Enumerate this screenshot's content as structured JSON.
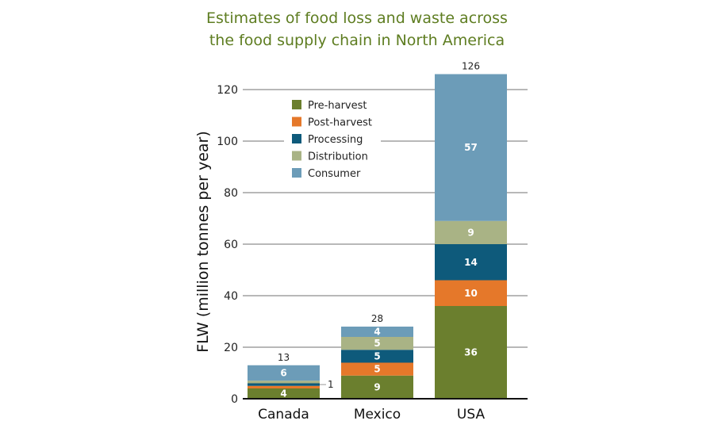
{
  "chart_data": {
    "type": "bar",
    "stacked": true,
    "title_lines": [
      "Estimates of food loss and waste across",
      "the food supply chain in North America"
    ],
    "ylabel": "FLW (million tonnes per year)",
    "xlabel": "",
    "ylim": [
      0,
      126
    ],
    "yticks": [
      0,
      20,
      40,
      60,
      80,
      100,
      120
    ],
    "grid": true,
    "legend_placement": "top-left",
    "categories": [
      "Canada",
      "Mexico",
      "USA"
    ],
    "totals": [
      13,
      28,
      126
    ],
    "series": [
      {
        "name": "Pre-harvest",
        "color": "#6b7f2e",
        "values": [
          4,
          9,
          36
        ]
      },
      {
        "name": "Post-harvest",
        "color": "#e5782a",
        "values": [
          1,
          5,
          10
        ]
      },
      {
        "name": "Processing",
        "color": "#0e5a7b",
        "values": [
          1,
          5,
          14
        ]
      },
      {
        "name": "Distribution",
        "color": "#a9b385",
        "values": [
          1,
          5,
          9
        ]
      },
      {
        "name": "Consumer",
        "color": "#6c9cb8",
        "values": [
          6,
          4,
          57
        ]
      }
    ],
    "data_labels": [
      [
        "4",
        "",
        "1",
        "",
        "6"
      ],
      [
        "9",
        "5",
        "5",
        "5",
        "4"
      ],
      [
        "36",
        "10",
        "14",
        "9",
        "57"
      ]
    ]
  }
}
